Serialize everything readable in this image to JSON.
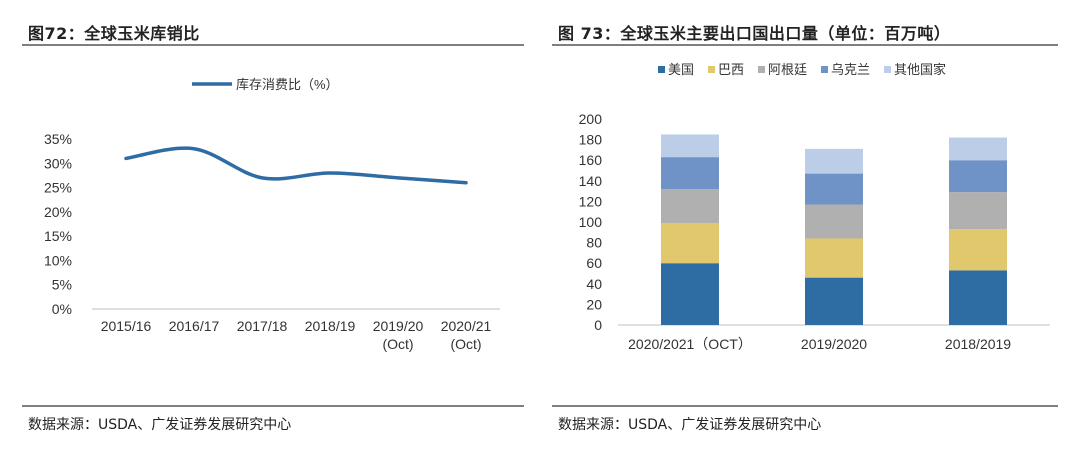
{
  "charts": {
    "left": {
      "title": "图72：全球玉米库销比",
      "source": "数据来源：USDA、广发证券发展研究中心"
    },
    "right": {
      "title": "图 73：全球玉米主要出口国出口量（单位：百万吨）",
      "source": "数据来源：USDA、广发证券发展研究中心"
    }
  },
  "chart_data": [
    {
      "type": "line",
      "title": "图72：全球玉米库销比",
      "categories": [
        "2015/16",
        "2016/17",
        "2017/18",
        "2018/19",
        "2019/20\n(Oct)",
        "2020/21\n(Oct)"
      ],
      "series": [
        {
          "name": "库存消费比（%）",
          "values": [
            31,
            33,
            27,
            28,
            27,
            26
          ],
          "color": "#2e6ca4"
        }
      ],
      "yticks": [
        "0%",
        "5%",
        "10%",
        "15%",
        "20%",
        "25%",
        "30%",
        "35%"
      ],
      "ylim": [
        0,
        35
      ],
      "unit": "%",
      "legend": "top-center",
      "grid": false
    },
    {
      "type": "bar",
      "stacked": true,
      "title": "图 73：全球玉米主要出口国出口量（单位：百万吨）",
      "categories": [
        "2020/2021（OCT）",
        "2019/2020",
        "2018/2019"
      ],
      "series": [
        {
          "name": "美国",
          "values": [
            60,
            46,
            53
          ],
          "color": "#2e6ca4"
        },
        {
          "name": "巴西",
          "values": [
            39,
            38,
            40
          ],
          "color": "#e2c86c"
        },
        {
          "name": "阿根廷",
          "values": [
            33,
            33,
            36
          ],
          "color": "#b0b0b0"
        },
        {
          "name": "乌克兰",
          "values": [
            31,
            30,
            31
          ],
          "color": "#6f93c6"
        },
        {
          "name": "其他国家",
          "values": [
            22,
            24,
            22
          ],
          "color": "#bccde8"
        }
      ],
      "yticks": [
        "0",
        "20",
        "40",
        "60",
        "80",
        "100",
        "120",
        "140",
        "160",
        "180",
        "200"
      ],
      "ylim": [
        0,
        200
      ],
      "legend": "top",
      "grid": false
    }
  ]
}
